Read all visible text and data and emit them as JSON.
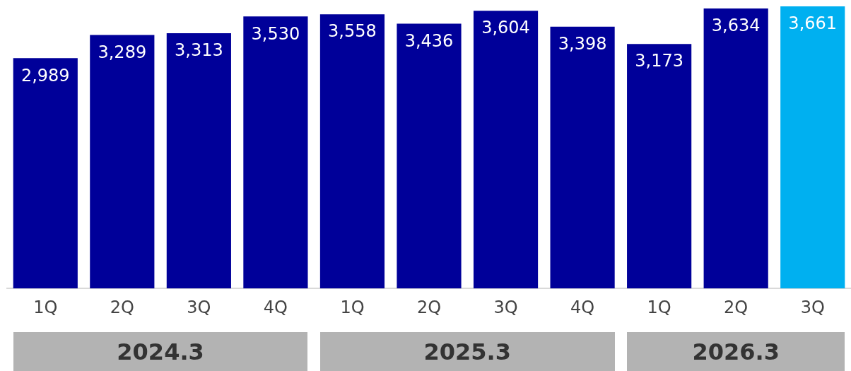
{
  "chart_data": {
    "type": "bar",
    "categories": [
      "1Q",
      "2Q",
      "3Q",
      "4Q",
      "1Q",
      "2Q",
      "3Q",
      "4Q",
      "1Q",
      "2Q",
      "3Q"
    ],
    "values": [
      2989,
      3289,
      3313,
      3530,
      3558,
      3436,
      3604,
      3398,
      3173,
      3634,
      3661
    ],
    "colors": [
      "#000099",
      "#000099",
      "#000099",
      "#000099",
      "#000099",
      "#000099",
      "#000099",
      "#000099",
      "#000099",
      "#000099",
      "#00b0f0"
    ],
    "value_labels": [
      "2,989",
      "3,289",
      "3,313",
      "3,530",
      "3,558",
      "3,436",
      "3,604",
      "3,398",
      "3,173",
      "3,634",
      "3,661"
    ],
    "grid": false,
    "legend": false,
    "annotations": [
      "2024.3",
      "2025.3",
      "2026.3"
    ]
  }
}
